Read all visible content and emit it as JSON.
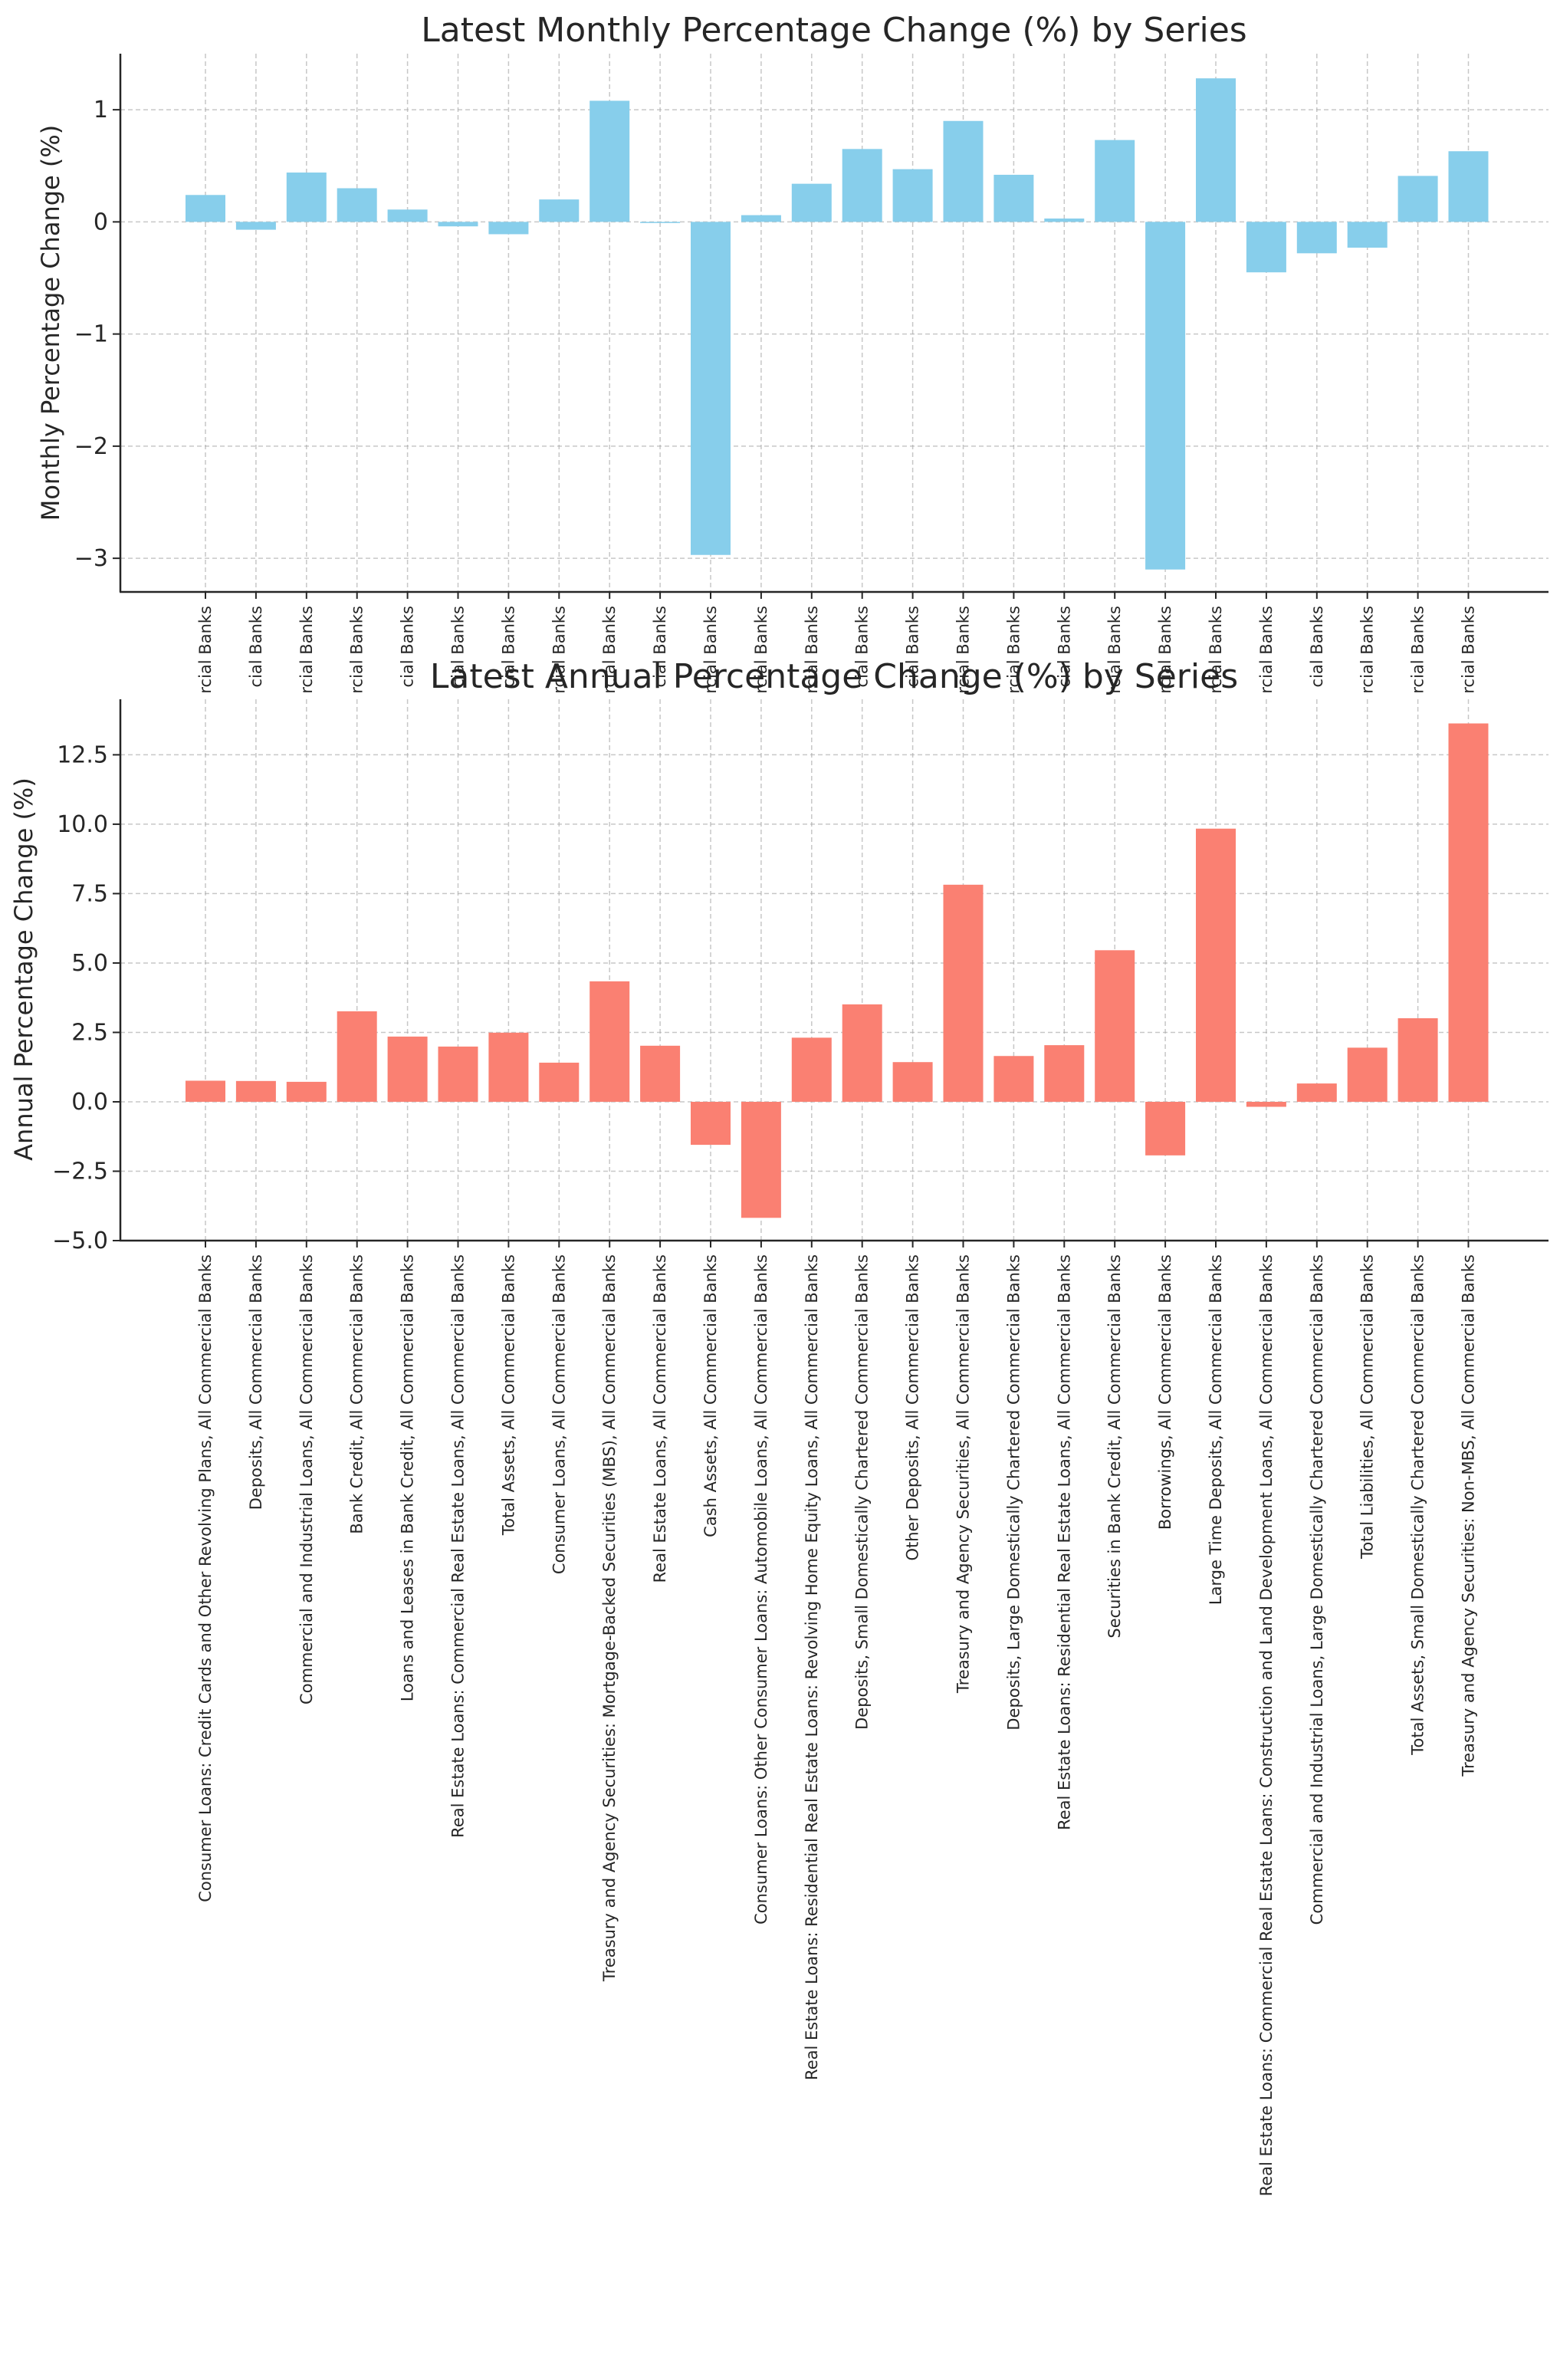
{
  "chart_data": [
    {
      "type": "bar",
      "title": "Latest Monthly Percentage Change (%) by Series",
      "xlabel": "",
      "ylabel": "Monthly Percentage Change (%)",
      "ylim": [
        -3.3,
        1.5
      ],
      "yticks": [
        -3,
        -2,
        -1,
        0,
        1
      ],
      "ytick_labels": [
        "−3",
        "−2",
        "−1",
        "0",
        "1"
      ],
      "grid": true,
      "color": "#87CEEB",
      "tick_labels_visible": [
        "rcial Banks",
        "cial Banks",
        "rcial Banks",
        "rcial Banks",
        "cial Banks",
        "cial Banks",
        "cial Banks",
        "rcial Banks",
        "rcial Banks",
        "cial Banks",
        "rcial Banks",
        "rcial Banks",
        "rcial Banks",
        "cial Banks",
        "cial Banks",
        "rcial Banks",
        "rcial Banks",
        "cial Banks",
        "rcial Banks",
        "rcial Banks",
        "rcial Banks",
        "rcial Banks",
        "cial Banks",
        "rcial Banks",
        "rcial Banks",
        "rcial Banks"
      ],
      "values": [
        0.24,
        -0.07,
        0.44,
        0.3,
        0.11,
        -0.04,
        -0.11,
        0.2,
        1.08,
        -0.01,
        -2.97,
        0.06,
        0.34,
        0.65,
        0.47,
        0.9,
        0.42,
        0.03,
        0.73,
        -3.1,
        1.28,
        -0.45,
        -0.28,
        -0.23,
        0.41,
        0.63
      ]
    },
    {
      "type": "bar",
      "title": "Latest Annual Percentage Change (%) by Series",
      "xlabel": "",
      "ylabel": "Annual Percentage Change (%)",
      "ylim": [
        -5.0,
        14.5
      ],
      "yticks": [
        -5,
        -2.5,
        0,
        2.5,
        5,
        7.5,
        10,
        12.5
      ],
      "ytick_labels": [
        "−5.0",
        "−2.5",
        "0.0",
        "2.5",
        "5.0",
        "7.5",
        "10.0",
        "12.5"
      ],
      "grid": true,
      "color": "#FA8072",
      "categories": [
        "Consumer Loans: Credit Cards and Other Revolving Plans, All Commercial Banks",
        "Deposits, All Commercial Banks",
        "Commercial and Industrial Loans, All Commercial Banks",
        "Bank Credit, All Commercial Banks",
        "Loans and Leases in Bank Credit, All Commercial Banks",
        "Real Estate Loans: Commercial Real Estate Loans, All Commercial Banks",
        "Total Assets, All Commercial Banks",
        "Consumer Loans, All Commercial Banks",
        "Treasury and Agency Securities: Mortgage-Backed Securities (MBS), All Commercial Banks",
        "Real Estate Loans, All Commercial Banks",
        "Cash Assets, All Commercial Banks",
        "Consumer Loans: Other Consumer Loans: Automobile Loans, All Commercial Banks",
        "Real Estate Loans: Residential Real Estate Loans: Revolving Home Equity Loans, All Commercial Banks",
        "Deposits, Small Domestically Chartered Commercial Banks",
        "Other Deposits, All Commercial Banks",
        "Treasury and Agency Securities, All Commercial Banks",
        "Deposits, Large Domestically Chartered Commercial Banks",
        "Real Estate Loans: Residential Real Estate Loans, All Commercial Banks",
        "Securities in Bank Credit, All Commercial Banks",
        "Borrowings, All Commercial Banks",
        "Large Time Deposits, All Commercial Banks",
        "Real Estate Loans: Commercial Real Estate Loans: Construction and Land Development Loans, All Commercial Banks",
        "Commercial and Industrial Loans, Large Domestically Chartered Commercial Banks",
        "Total Liabilities, All Commercial Banks",
        "Total Assets, Small Domestically Chartered Commercial Banks",
        "Treasury and Agency Securities: Non-MBS, All Commercial Banks"
      ],
      "values": [
        0.76,
        0.75,
        0.72,
        3.26,
        2.35,
        1.99,
        2.49,
        1.41,
        4.34,
        2.02,
        -1.55,
        -4.18,
        2.31,
        3.51,
        1.43,
        7.82,
        1.65,
        2.04,
        5.46,
        -1.93,
        9.84,
        -0.18,
        0.66,
        1.95,
        3.01,
        13.63
      ]
    }
  ]
}
